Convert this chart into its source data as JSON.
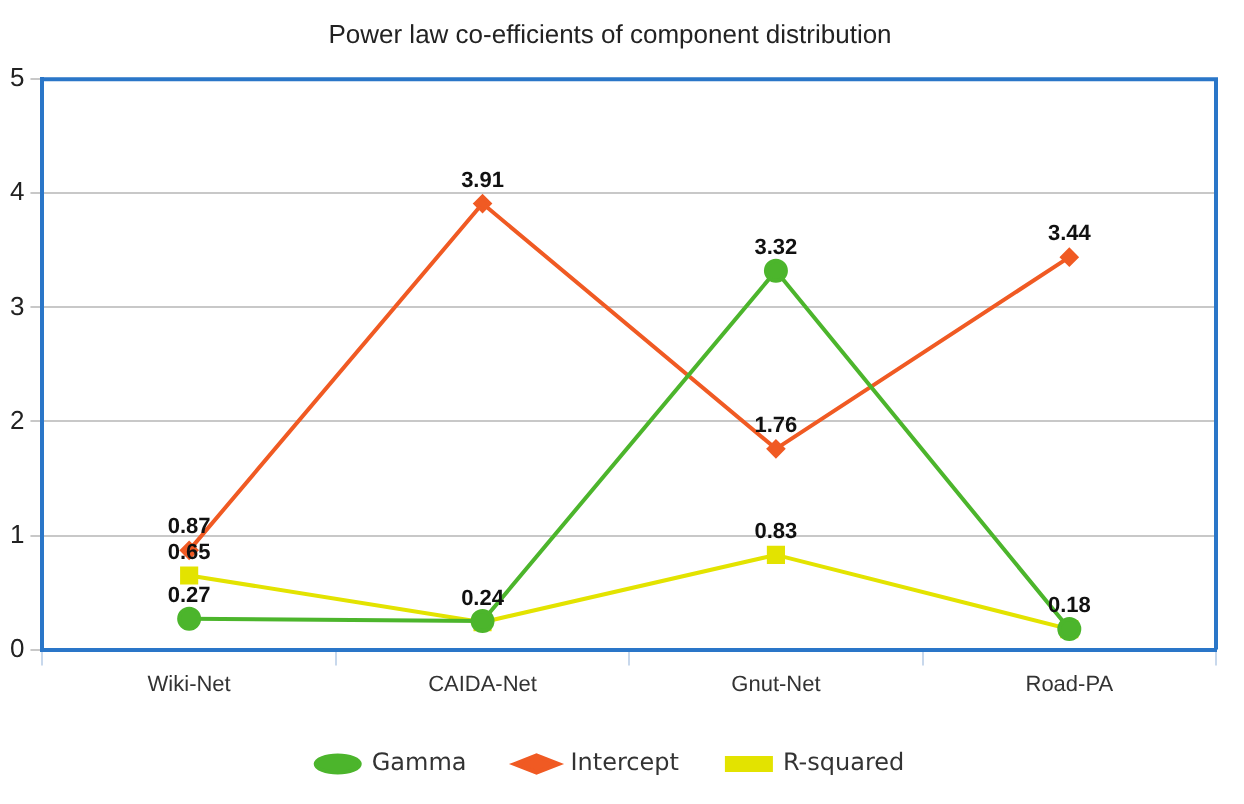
{
  "chart_data": {
    "type": "line",
    "title": "Power law co-efficients of component distribution",
    "categories": [
      "Wiki-Net",
      "CAIDA-Net",
      "Gnut-Net",
      "Road-PA"
    ],
    "series": [
      {
        "name": "Gamma",
        "color": "#4cb52c",
        "marker": "circle",
        "values": [
          0.27,
          0.25,
          3.32,
          0.18
        ],
        "value_labels": [
          "0.27",
          null,
          "3.32",
          null
        ]
      },
      {
        "name": "Intercept",
        "color": "#f05a23",
        "marker": "diamond",
        "values": [
          0.87,
          3.91,
          1.76,
          3.44
        ],
        "value_labels": [
          "0.87",
          "3.91",
          "1.76",
          "3.44"
        ]
      },
      {
        "name": "R-squared",
        "color": "#e3e300",
        "marker": "square",
        "values": [
          0.65,
          0.24,
          0.83,
          0.18
        ],
        "value_labels": [
          "0.65",
          "0.24",
          "0.83",
          "0.18"
        ]
      }
    ],
    "ylim": [
      0,
      5
    ],
    "yticks": [
      0,
      1,
      2,
      3,
      4,
      5
    ],
    "grid": "y",
    "legend": "bottom"
  }
}
